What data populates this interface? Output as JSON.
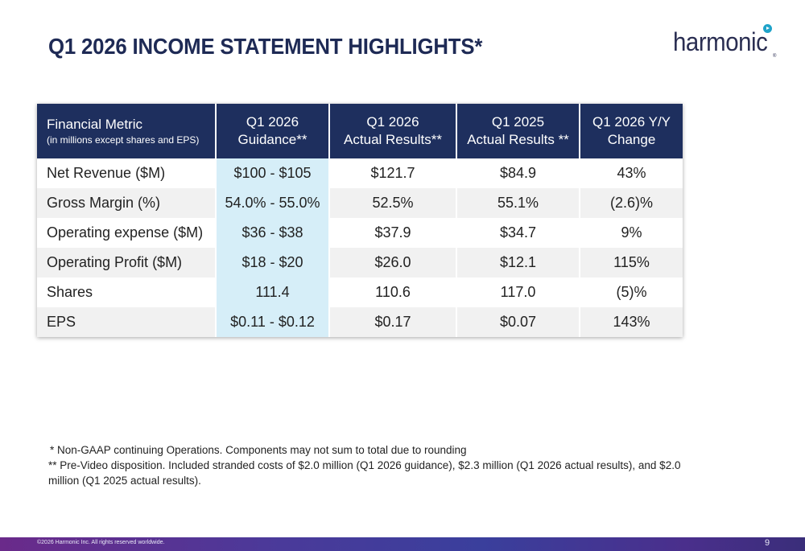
{
  "title": "Q1 2026 INCOME STATEMENT HIGHLIGHTS*",
  "logo": {
    "text": "harmonic",
    "reg": "®"
  },
  "table": {
    "headers": [
      {
        "main": "Financial Metric",
        "sub": "(in millions except shares and EPS)"
      },
      {
        "line1": "Q1 2026",
        "line2": "Guidance**"
      },
      {
        "line1": "Q1 2026",
        "line2": "Actual Results**"
      },
      {
        "line1": "Q1 2025",
        "line2": "Actual Results **"
      },
      {
        "line1": "Q1 2026 Y/Y",
        "line2": "Change"
      }
    ],
    "rows": [
      {
        "metric": "Net Revenue ($M)",
        "guidance": "$100 - $105",
        "q1_2026": "$121.7",
        "q1_2025": "$84.9",
        "change": "43%"
      },
      {
        "metric": "Gross Margin (%)",
        "guidance": "54.0% - 55.0%",
        "q1_2026": "52.5%",
        "q1_2025": "55.1%",
        "change": "(2.6)%"
      },
      {
        "metric": "Operating expense ($M)",
        "guidance": "$36 - $38",
        "q1_2026": "$37.9",
        "q1_2025": "$34.7",
        "change": "9%"
      },
      {
        "metric": "Operating Profit ($M)",
        "guidance": "$18 - $20",
        "q1_2026": "$26.0",
        "q1_2025": "$12.1",
        "change": "115%"
      },
      {
        "metric": "Shares",
        "guidance": "111.4",
        "q1_2026": "110.6",
        "q1_2025": "117.0",
        "change": "(5)%"
      },
      {
        "metric": "EPS",
        "guidance": "$0.11 - $0.12",
        "q1_2026": "$0.17",
        "q1_2025": "$0.07",
        "change": "143%"
      }
    ]
  },
  "footnotes": {
    "note1": "* Non-GAAP continuing Operations. Components may not sum to total due to rounding",
    "note2": "** Pre-Video disposition. Included stranded costs of $2.0 million (Q1 2026 guidance), $2.3 million (Q1 2026 actual results), and $2.0 million (Q1 2025 actual results)."
  },
  "footer": {
    "copyright": "©2026 Harmonic Inc. All rights reserved worldwide.",
    "page_number": "9"
  },
  "colors": {
    "title": "#1e2a55",
    "header_bg": "#1e2f5e",
    "guidance_bg": "#d6eef8",
    "row_alt_bg": "#f1f1f1",
    "logo_accent": "#1fa3c9"
  }
}
